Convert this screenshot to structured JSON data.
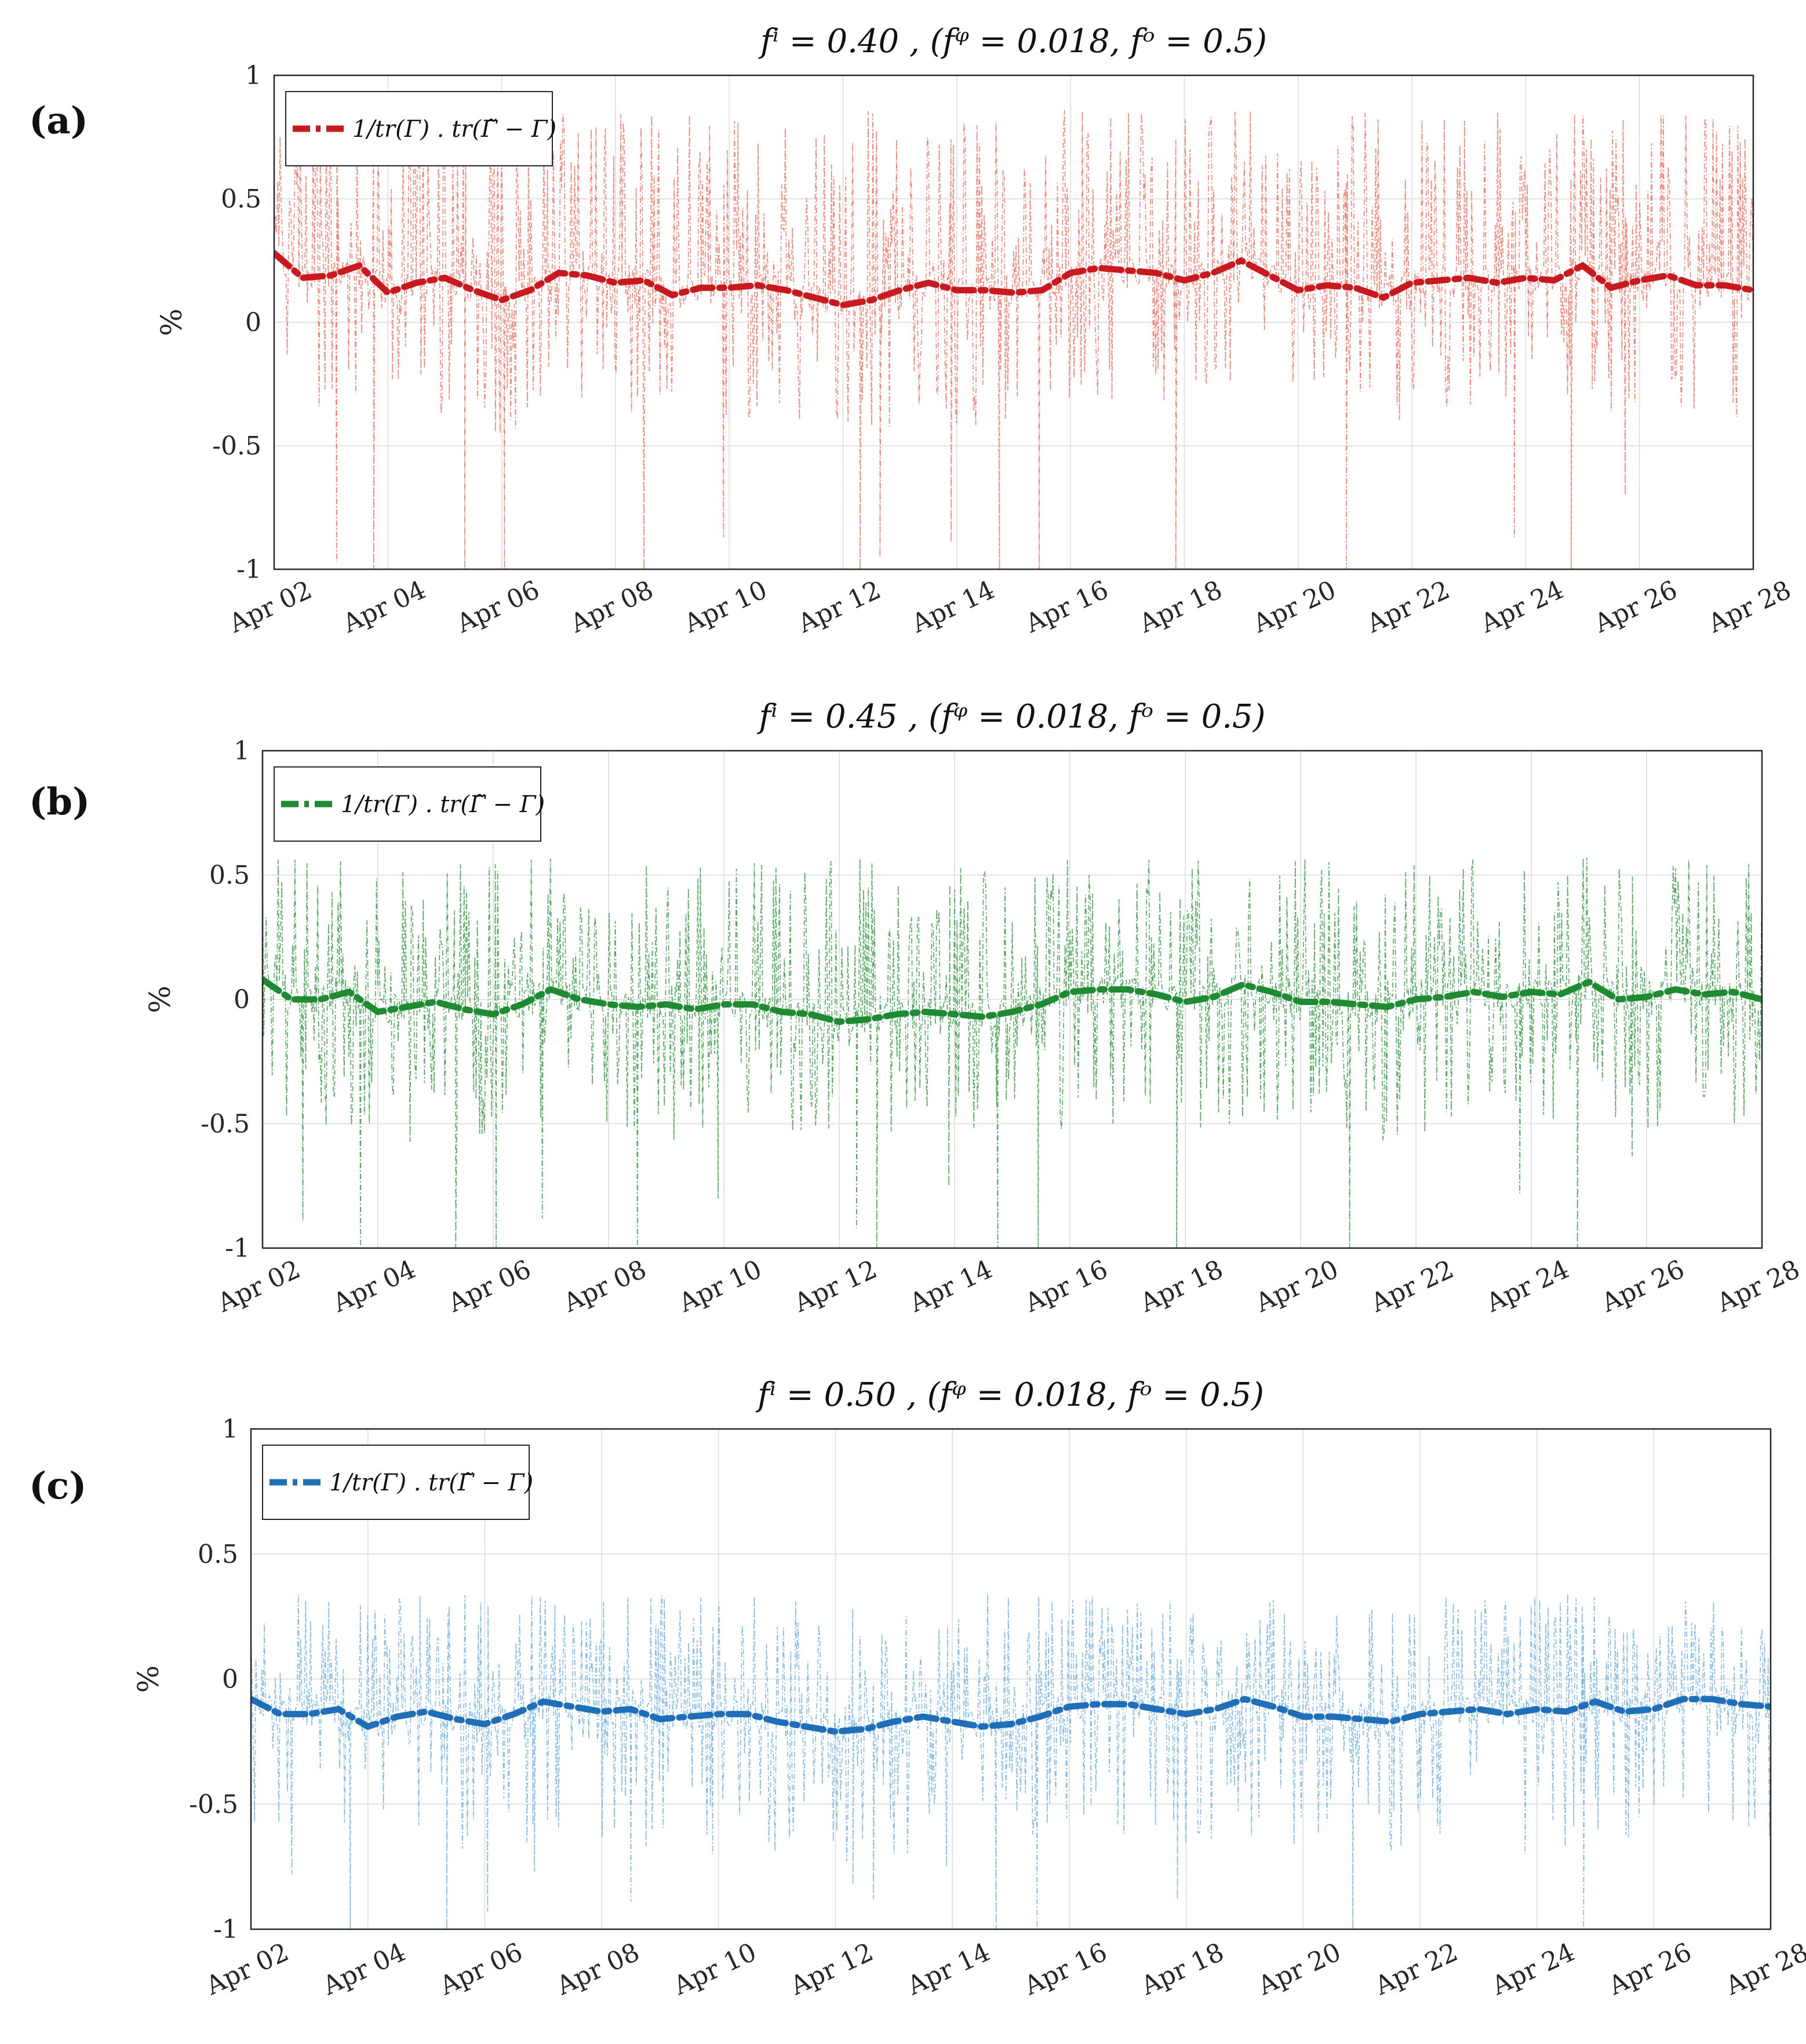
{
  "chart_data": [
    {
      "panel": "(a)",
      "type": "line",
      "title": "fⁱ = 0.40 , (fᵠ = 0.018, fᵒ = 0.5)",
      "xlabel": "",
      "ylabel": "%",
      "ylim": [
        -1,
        1
      ],
      "yticks": [
        "1",
        "0.5",
        "0",
        "-0.5",
        "-1"
      ],
      "xlim": [
        2,
        28
      ],
      "xticks": [
        "Apr 02",
        "Apr 04",
        "Apr 06",
        "Apr 08",
        "Apr 10",
        "Apr 12",
        "Apr 14",
        "Apr 16",
        "Apr 18",
        "Apr 20",
        "Apr 22",
        "Apr 24",
        "Apr 26",
        "Apr 28"
      ],
      "grid": true,
      "legend": {
        "label": "1/tr(Γ) . tr(Γ̃ − Γ)",
        "loc": "top-left"
      },
      "colors": {
        "trend": "#c8191e",
        "raw": "#f26b5b"
      },
      "series": [
        {
          "name": "trend",
          "x": [
            2,
            2.5,
            3,
            3.5,
            4,
            4.5,
            5,
            5.5,
            6,
            6.5,
            7,
            7.5,
            8,
            8.5,
            9,
            9.5,
            10,
            10.5,
            11,
            11.5,
            12,
            12.5,
            13,
            13.5,
            14,
            14.5,
            15,
            15.5,
            16,
            16.5,
            17,
            17.5,
            18,
            18.5,
            19,
            19.5,
            20,
            20.5,
            21,
            21.5,
            22,
            22.5,
            23,
            23.5,
            24,
            24.5,
            25,
            25.5,
            26,
            26.5,
            27,
            27.5,
            28
          ],
          "values": [
            0.28,
            0.18,
            0.19,
            0.23,
            0.12,
            0.16,
            0.18,
            0.13,
            0.09,
            0.13,
            0.2,
            0.19,
            0.16,
            0.17,
            0.11,
            0.14,
            0.14,
            0.15,
            0.13,
            0.1,
            0.07,
            0.09,
            0.13,
            0.16,
            0.13,
            0.13,
            0.12,
            0.13,
            0.2,
            0.22,
            0.21,
            0.2,
            0.17,
            0.2,
            0.25,
            0.19,
            0.13,
            0.15,
            0.14,
            0.1,
            0.16,
            0.17,
            0.18,
            0.16,
            0.18,
            0.17,
            0.23,
            0.14,
            0.17,
            0.19,
            0.15,
            0.15,
            0.13
          ]
        },
        {
          "name": "raw",
          "style": "thin dash-dot, dense oscillation",
          "high": 0.9,
          "low": -1.0,
          "dips": [
            {
              "x": 3.1,
              "y": -0.97
            },
            {
              "x": 3.75,
              "y": -1.0
            },
            {
              "x": 5.35,
              "y": -1.0
            },
            {
              "x": 6.05,
              "y": -1.0
            },
            {
              "x": 8.5,
              "y": -1.0
            },
            {
              "x": 9.9,
              "y": -0.87
            },
            {
              "x": 12.3,
              "y": -1.0
            },
            {
              "x": 12.65,
              "y": -0.95
            },
            {
              "x": 13.9,
              "y": -0.89
            },
            {
              "x": 14.75,
              "y": -1.0
            },
            {
              "x": 15.45,
              "y": -1.0
            },
            {
              "x": 17.85,
              "y": -1.0
            },
            {
              "x": 20.85,
              "y": -1.0
            },
            {
              "x": 23.8,
              "y": -0.87
            },
            {
              "x": 24.8,
              "y": -1.0
            },
            {
              "x": 25.75,
              "y": -0.7
            }
          ]
        }
      ]
    },
    {
      "panel": "(b)",
      "type": "line",
      "title": "fⁱ = 0.45 , (fᵠ = 0.018, fᵒ = 0.5)",
      "xlabel": "",
      "ylabel": "%",
      "ylim": [
        -1,
        1
      ],
      "yticks": [
        "1",
        "0.5",
        "0",
        "-0.5",
        "-1"
      ],
      "xlim": [
        2,
        28
      ],
      "xticks": [
        "Apr 02",
        "Apr 04",
        "Apr 06",
        "Apr 08",
        "Apr 10",
        "Apr 12",
        "Apr 14",
        "Apr 16",
        "Apr 18",
        "Apr 20",
        "Apr 22",
        "Apr 24",
        "Apr 26",
        "Apr 28"
      ],
      "grid": true,
      "legend": {
        "label": "1/tr(Γ) . tr(Γ̃ − Γ)",
        "loc": "top-left"
      },
      "colors": {
        "trend": "#1e8a32",
        "raw": "#2e9a3c"
      },
      "series": [
        {
          "name": "trend",
          "x": [
            2,
            2.5,
            3,
            3.5,
            4,
            4.5,
            5,
            5.5,
            6,
            6.5,
            7,
            7.5,
            8,
            8.5,
            9,
            9.5,
            10,
            10.5,
            11,
            11.5,
            12,
            12.5,
            13,
            13.5,
            14,
            14.5,
            15,
            15.5,
            16,
            16.5,
            17,
            17.5,
            18,
            18.5,
            19,
            19.5,
            20,
            20.5,
            21,
            21.5,
            22,
            22.5,
            23,
            23.5,
            24,
            24.5,
            25,
            25.5,
            26,
            26.5,
            27,
            27.5,
            28
          ],
          "values": [
            0.08,
            0.0,
            0.0,
            0.03,
            -0.05,
            -0.03,
            -0.01,
            -0.04,
            -0.06,
            -0.02,
            0.04,
            0.0,
            -0.02,
            -0.03,
            -0.02,
            -0.04,
            -0.02,
            -0.02,
            -0.05,
            -0.06,
            -0.09,
            -0.08,
            -0.06,
            -0.05,
            -0.06,
            -0.07,
            -0.05,
            -0.02,
            0.03,
            0.04,
            0.04,
            0.02,
            -0.01,
            0.01,
            0.06,
            0.03,
            -0.01,
            -0.01,
            -0.02,
            -0.03,
            0.0,
            0.01,
            0.03,
            0.01,
            0.03,
            0.02,
            0.07,
            0.0,
            0.01,
            0.04,
            0.02,
            0.03,
            0.0
          ]
        },
        {
          "name": "raw",
          "style": "thin dash-dot, dense oscillation",
          "high": 0.6,
          "low": -1.0,
          "dips": [
            {
              "x": 2.7,
              "y": -0.89
            },
            {
              "x": 3.7,
              "y": -1.0
            },
            {
              "x": 5.35,
              "y": -1.0
            },
            {
              "x": 6.05,
              "y": -1.0
            },
            {
              "x": 6.85,
              "y": -0.88
            },
            {
              "x": 8.5,
              "y": -1.0
            },
            {
              "x": 9.9,
              "y": -0.8
            },
            {
              "x": 12.3,
              "y": -0.92
            },
            {
              "x": 12.65,
              "y": -1.0
            },
            {
              "x": 13.9,
              "y": -0.75
            },
            {
              "x": 14.75,
              "y": -1.0
            },
            {
              "x": 15.45,
              "y": -1.0
            },
            {
              "x": 17.85,
              "y": -1.0
            },
            {
              "x": 20.85,
              "y": -1.0
            },
            {
              "x": 23.8,
              "y": -0.78
            },
            {
              "x": 24.8,
              "y": -1.0
            },
            {
              "x": 25.75,
              "y": -0.63
            }
          ]
        }
      ]
    },
    {
      "panel": "(c)",
      "type": "line",
      "title": "fⁱ = 0.50 , (fᵠ = 0.018, fᵒ = 0.5)",
      "xlabel": "",
      "ylabel": "%",
      "ylim": [
        -1,
        1
      ],
      "yticks": [
        "1",
        "0.5",
        "0",
        "-0.5",
        "-1"
      ],
      "xlim": [
        2,
        28
      ],
      "xticks": [
        "Apr 02",
        "Apr 04",
        "Apr 06",
        "Apr 08",
        "Apr 10",
        "Apr 12",
        "Apr 14",
        "Apr 16",
        "Apr 18",
        "Apr 20",
        "Apr 22",
        "Apr 24",
        "Apr 26",
        "Apr 28"
      ],
      "grid": true,
      "legend": {
        "label": "1/tr(Γ) . tr(Γ̃ − Γ)",
        "loc": "top-left"
      },
      "colors": {
        "trend": "#1f6fb8",
        "raw": "#6aaee0"
      },
      "series": [
        {
          "name": "trend",
          "x": [
            2,
            2.5,
            3,
            3.5,
            4,
            4.5,
            5,
            5.5,
            6,
            6.5,
            7,
            7.5,
            8,
            8.5,
            9,
            9.5,
            10,
            10.5,
            11,
            11.5,
            12,
            12.5,
            13,
            13.5,
            14,
            14.5,
            15,
            15.5,
            16,
            16.5,
            17,
            17.5,
            18,
            18.5,
            19,
            19.5,
            20,
            20.5,
            21,
            21.5,
            22,
            22.5,
            23,
            23.5,
            24,
            24.5,
            25,
            25.5,
            26,
            26.5,
            27,
            27.5,
            28
          ],
          "values": [
            -0.08,
            -0.14,
            -0.14,
            -0.12,
            -0.19,
            -0.15,
            -0.13,
            -0.16,
            -0.18,
            -0.14,
            -0.09,
            -0.11,
            -0.13,
            -0.12,
            -0.16,
            -0.15,
            -0.14,
            -0.14,
            -0.17,
            -0.19,
            -0.21,
            -0.2,
            -0.17,
            -0.15,
            -0.17,
            -0.19,
            -0.18,
            -0.15,
            -0.11,
            -0.1,
            -0.1,
            -0.12,
            -0.14,
            -0.12,
            -0.08,
            -0.11,
            -0.15,
            -0.15,
            -0.16,
            -0.17,
            -0.14,
            -0.13,
            -0.12,
            -0.14,
            -0.12,
            -0.13,
            -0.09,
            -0.13,
            -0.12,
            -0.08,
            -0.08,
            -0.1,
            -0.11
          ]
        },
        {
          "name": "raw",
          "style": "thin dash-dot, dense oscillation",
          "high": 0.37,
          "low": -1.0,
          "dips": [
            {
              "x": 2.7,
              "y": -0.78
            },
            {
              "x": 3.7,
              "y": -1.0
            },
            {
              "x": 5.35,
              "y": -1.0
            },
            {
              "x": 6.05,
              "y": -0.93
            },
            {
              "x": 6.85,
              "y": -0.77
            },
            {
              "x": 8.5,
              "y": -0.89
            },
            {
              "x": 9.9,
              "y": -0.7
            },
            {
              "x": 12.3,
              "y": -0.82
            },
            {
              "x": 12.65,
              "y": -0.88
            },
            {
              "x": 13.9,
              "y": -0.75
            },
            {
              "x": 14.75,
              "y": -1.0
            },
            {
              "x": 15.45,
              "y": -1.0
            },
            {
              "x": 17.85,
              "y": -0.88
            },
            {
              "x": 20.85,
              "y": -1.0
            },
            {
              "x": 23.8,
              "y": -0.7
            },
            {
              "x": 24.8,
              "y": -1.0
            },
            {
              "x": 25.75,
              "y": -0.55
            }
          ]
        }
      ]
    }
  ]
}
